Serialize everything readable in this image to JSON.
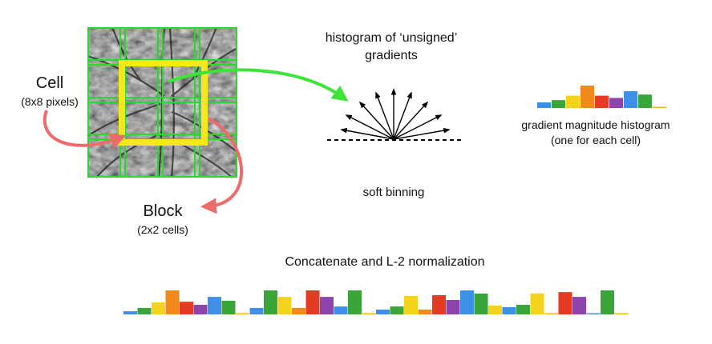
{
  "labels": {
    "cell": "Cell",
    "cell_size": "(8x8 pixels)",
    "block": "Block",
    "block_size": "(2x2 cells)",
    "histogram_title_line1": "histogram of ‘unsigned’",
    "histogram_title_line2": "gradients",
    "soft_binning": "soft binning",
    "magnitude_line1": "gradient magnitude histogram",
    "magnitude_line2": "(one for each cell)",
    "concat": "Concatenate and L-2 normalization"
  },
  "colors": {
    "cell_grid": "#27d92a",
    "block_box": "#f7e81c",
    "green_arrow": "#3fe43a",
    "red_arrow": "#ee6b6b",
    "bin_colors": [
      "#3d8fe8",
      "#3aa63a",
      "#f4d31d",
      "#f18a1b",
      "#e53b22",
      "#8e44ad",
      "#3d8fe8",
      "#3aa63a",
      "#f2b31c"
    ]
  },
  "icons": {
    "cell_image": "tree-branch-photo",
    "gradient_arrows": "unsigned-gradient-fan-icon"
  },
  "cell_histogram": {
    "bins": [
      {
        "color": "#3d8fe8",
        "value": 0.25
      },
      {
        "color": "#3aa63a",
        "value": 0.35
      },
      {
        "color": "#f4d31d",
        "value": 0.55
      },
      {
        "color": "#f18a1b",
        "value": 1.0
      },
      {
        "color": "#e53b22",
        "value": 0.55
      },
      {
        "color": "#8e44ad",
        "value": 0.45
      },
      {
        "color": "#3d8fe8",
        "value": 0.75
      },
      {
        "color": "#3aa63a",
        "value": 0.6
      },
      {
        "color": "#f2b31c",
        "value": 0.05
      }
    ]
  },
  "block_vector": {
    "bins": [
      {
        "color": "#3d8fe8",
        "value": 0.13
      },
      {
        "color": "#3aa63a",
        "value": 0.27
      },
      {
        "color": "#f4d31d",
        "value": 0.5
      },
      {
        "color": "#f18a1b",
        "value": 1.0
      },
      {
        "color": "#e53b22",
        "value": 0.53
      },
      {
        "color": "#8e44ad",
        "value": 0.4
      },
      {
        "color": "#3d8fe8",
        "value": 0.73
      },
      {
        "color": "#3aa63a",
        "value": 0.57
      },
      {
        "color": "#f2b31c",
        "value": 0.03
      },
      {
        "color": "#3d8fe8",
        "value": 0.27
      },
      {
        "color": "#3aa63a",
        "value": 1.0
      },
      {
        "color": "#f4d31d",
        "value": 0.73
      },
      {
        "color": "#f18a1b",
        "value": 0.27
      },
      {
        "color": "#e53b22",
        "value": 1.0
      },
      {
        "color": "#8e44ad",
        "value": 0.73
      },
      {
        "color": "#3d8fe8",
        "value": 0.33
      },
      {
        "color": "#3aa63a",
        "value": 1.0
      },
      {
        "color": "#f2b31c",
        "value": 0.03
      },
      {
        "color": "#3d8fe8",
        "value": 0.2
      },
      {
        "color": "#3aa63a",
        "value": 0.33
      },
      {
        "color": "#f4d31d",
        "value": 0.77
      },
      {
        "color": "#f18a1b",
        "value": 0.2
      },
      {
        "color": "#e53b22",
        "value": 0.8
      },
      {
        "color": "#8e44ad",
        "value": 0.6
      },
      {
        "color": "#3d8fe8",
        "value": 1.0
      },
      {
        "color": "#3aa63a",
        "value": 0.87
      },
      {
        "color": "#f4d31d",
        "value": 0.37
      },
      {
        "color": "#3d8fe8",
        "value": 0.3
      },
      {
        "color": "#3aa63a",
        "value": 0.4
      },
      {
        "color": "#f4d31d",
        "value": 0.87
      },
      {
        "color": "#f2b31c",
        "value": 0.03
      },
      {
        "color": "#e53b22",
        "value": 0.93
      },
      {
        "color": "#8e44ad",
        "value": 0.73
      },
      {
        "color": "#3d8fe8",
        "value": 0.03
      },
      {
        "color": "#3aa63a",
        "value": 1.0
      },
      {
        "color": "#f2b31c",
        "value": 0.03
      }
    ]
  }
}
